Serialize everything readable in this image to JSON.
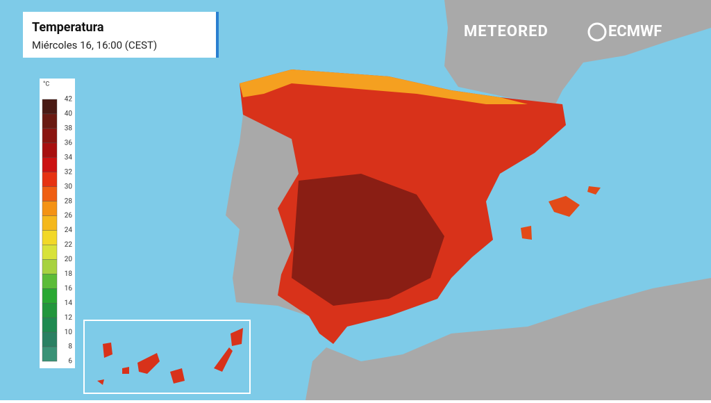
{
  "header": {
    "title": "Temperatura",
    "subtitle": "Miércoles 16, 16:00 (CEST)"
  },
  "logos": [
    "METEORED",
    "ECMWF"
  ],
  "legend": {
    "unit": "°C",
    "ticks": [
      42,
      40,
      38,
      36,
      34,
      32,
      30,
      28,
      26,
      24,
      22,
      20,
      18,
      16,
      14,
      12,
      10,
      8,
      6
    ],
    "colors": [
      "#4a1a14",
      "#6a1a12",
      "#8a1510",
      "#a80f0f",
      "#cc1212",
      "#e63212",
      "#ef5e12",
      "#f49214",
      "#f5b81c",
      "#f2d828",
      "#d8e23a",
      "#a8d240",
      "#5cbc38",
      "#2aa832",
      "#22963c",
      "#1f8a50",
      "#2a8062",
      "#3a9276"
    ]
  }
}
